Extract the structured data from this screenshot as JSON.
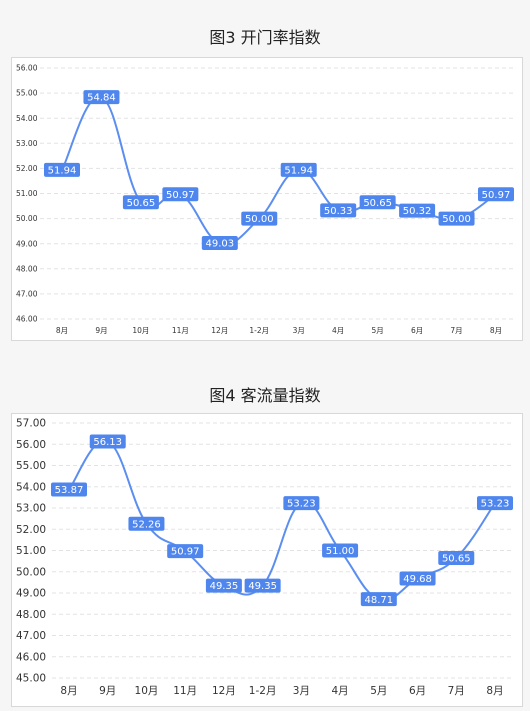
{
  "chart_data": [
    {
      "type": "line",
      "title": "图3 开门率指数",
      "categories": [
        "8月",
        "9月",
        "10月",
        "11月",
        "12月",
        "1-2月",
        "3月",
        "4月",
        "5月",
        "6月",
        "7月",
        "8月"
      ],
      "values": [
        51.94,
        54.84,
        50.65,
        50.97,
        49.03,
        50.0,
        51.94,
        50.33,
        50.65,
        50.32,
        50.0,
        50.97
      ],
      "value_labels": [
        "51.94",
        "54.84",
        "50.65",
        "50.97",
        "49.03",
        "50.00",
        "51.94",
        "50.33",
        "50.65",
        "50.32",
        "50.00",
        "50.97"
      ],
      "ylim": [
        46,
        56
      ],
      "yticks": [
        "46.00",
        "47.00",
        "48.00",
        "49.00",
        "50.00",
        "51.00",
        "52.00",
        "53.00",
        "54.00",
        "55.00",
        "56.00"
      ],
      "grid": true,
      "color": "#5b8ef0"
    },
    {
      "type": "line",
      "title": "图4 客流量指数",
      "categories": [
        "8月",
        "9月",
        "10月",
        "11月",
        "12月",
        "1-2月",
        "3月",
        "4月",
        "5月",
        "6月",
        "7月",
        "8月"
      ],
      "values": [
        53.87,
        56.13,
        52.26,
        50.97,
        49.35,
        49.35,
        53.23,
        51.0,
        48.71,
        49.68,
        50.65,
        53.23
      ],
      "value_labels": [
        "53.87",
        "56.13",
        "52.26",
        "50.97",
        "49.35",
        "49.35",
        "53.23",
        "51.00",
        "48.71",
        "49.68",
        "50.65",
        "53.23"
      ],
      "ylim": [
        45,
        57
      ],
      "yticks": [
        "45.00",
        "46.00",
        "47.00",
        "48.00",
        "49.00",
        "50.00",
        "51.00",
        "52.00",
        "53.00",
        "54.00",
        "55.00",
        "56.00",
        "57.00"
      ],
      "grid": true,
      "color": "#5b8ef0"
    }
  ]
}
